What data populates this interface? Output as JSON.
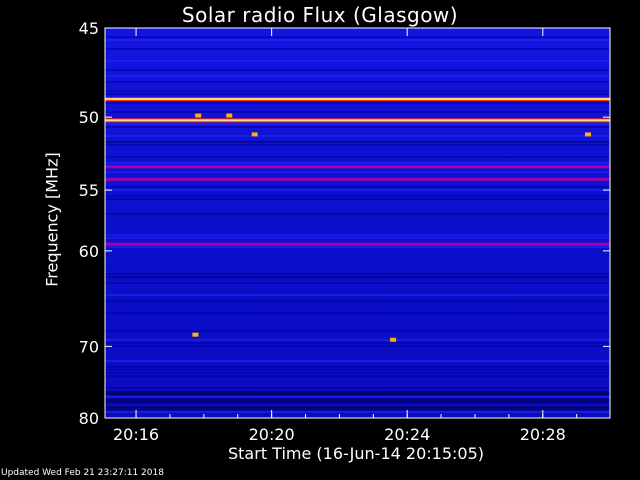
{
  "chart_data": {
    "type": "heatmap",
    "title": "Solar radio Flux (Glasgow)",
    "ylabel": "Frequency [MHz]",
    "xlabel": "Start Time (16-Jun-14 20:15:05)",
    "updated": "Updated Wed Feb 21 23:27:11 2018",
    "y_ticks": [
      "45",
      "50",
      "55",
      "60",
      "70",
      "80"
    ],
    "x_ticks": [
      "20:16",
      "20:20",
      "20:24",
      "20:28"
    ],
    "ylim": [
      45,
      80
    ],
    "xlim": [
      "20:15:05",
      "20:29:59"
    ],
    "colormap": [
      "#000000",
      "#0000a0",
      "#0000ff",
      "#8000ff",
      "#ff0000",
      "#ffa000",
      "#ffff80"
    ],
    "bright_bands_mhz": [
      {
        "freq": 48.9,
        "level": "high"
      },
      {
        "freq": 50.2,
        "level": "high"
      },
      {
        "freq": 53.3,
        "level": "medium"
      },
      {
        "freq": 54.2,
        "level": "medium"
      },
      {
        "freq": 59.4,
        "level": "medium"
      }
    ],
    "hotspots": [
      {
        "time": "20:17:50",
        "freq": 49.9
      },
      {
        "time": "20:18:45",
        "freq": 49.9
      },
      {
        "time": "20:19:30",
        "freq": 51.1
      },
      {
        "time": "20:29:20",
        "freq": 51.1
      },
      {
        "time": "20:17:45",
        "freq": 68.6
      },
      {
        "time": "20:23:35",
        "freq": 69.2
      }
    ]
  }
}
